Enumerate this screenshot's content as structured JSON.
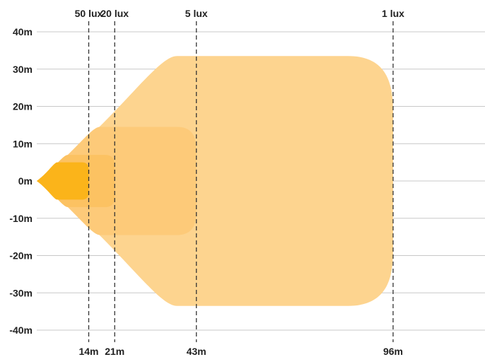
{
  "chart_data": {
    "type": "area",
    "title": "",
    "xlabel": "",
    "ylabel": "",
    "xlim": [
      0,
      108
    ],
    "ylim": [
      -40,
      40
    ],
    "grid": true,
    "y_ticks": [
      {
        "value": 40,
        "label": "40m"
      },
      {
        "value": 30,
        "label": "30m"
      },
      {
        "value": 20,
        "label": "20m"
      },
      {
        "value": 10,
        "label": "10m"
      },
      {
        "value": 0,
        "label": "0m"
      },
      {
        "value": -10,
        "label": "-10m"
      },
      {
        "value": -20,
        "label": "-20m"
      },
      {
        "value": -30,
        "label": "-30m"
      },
      {
        "value": -40,
        "label": "-40m"
      }
    ],
    "series": [
      {
        "name": "1 lux",
        "distance_label": "96m",
        "distance": 96,
        "half_width": 33.5,
        "color": "#fdd48f"
      },
      {
        "name": "5 lux",
        "distance_label": "43m",
        "distance": 43,
        "half_width": 14.5,
        "color": "#fdca79"
      },
      {
        "name": "20 lux",
        "distance_label": "21m",
        "distance": 21,
        "half_width": 7,
        "color": "#fcc262"
      },
      {
        "name": "50 lux",
        "distance_label": "14m",
        "distance": 14,
        "half_width": 5,
        "color": "#fbb41a"
      }
    ]
  }
}
